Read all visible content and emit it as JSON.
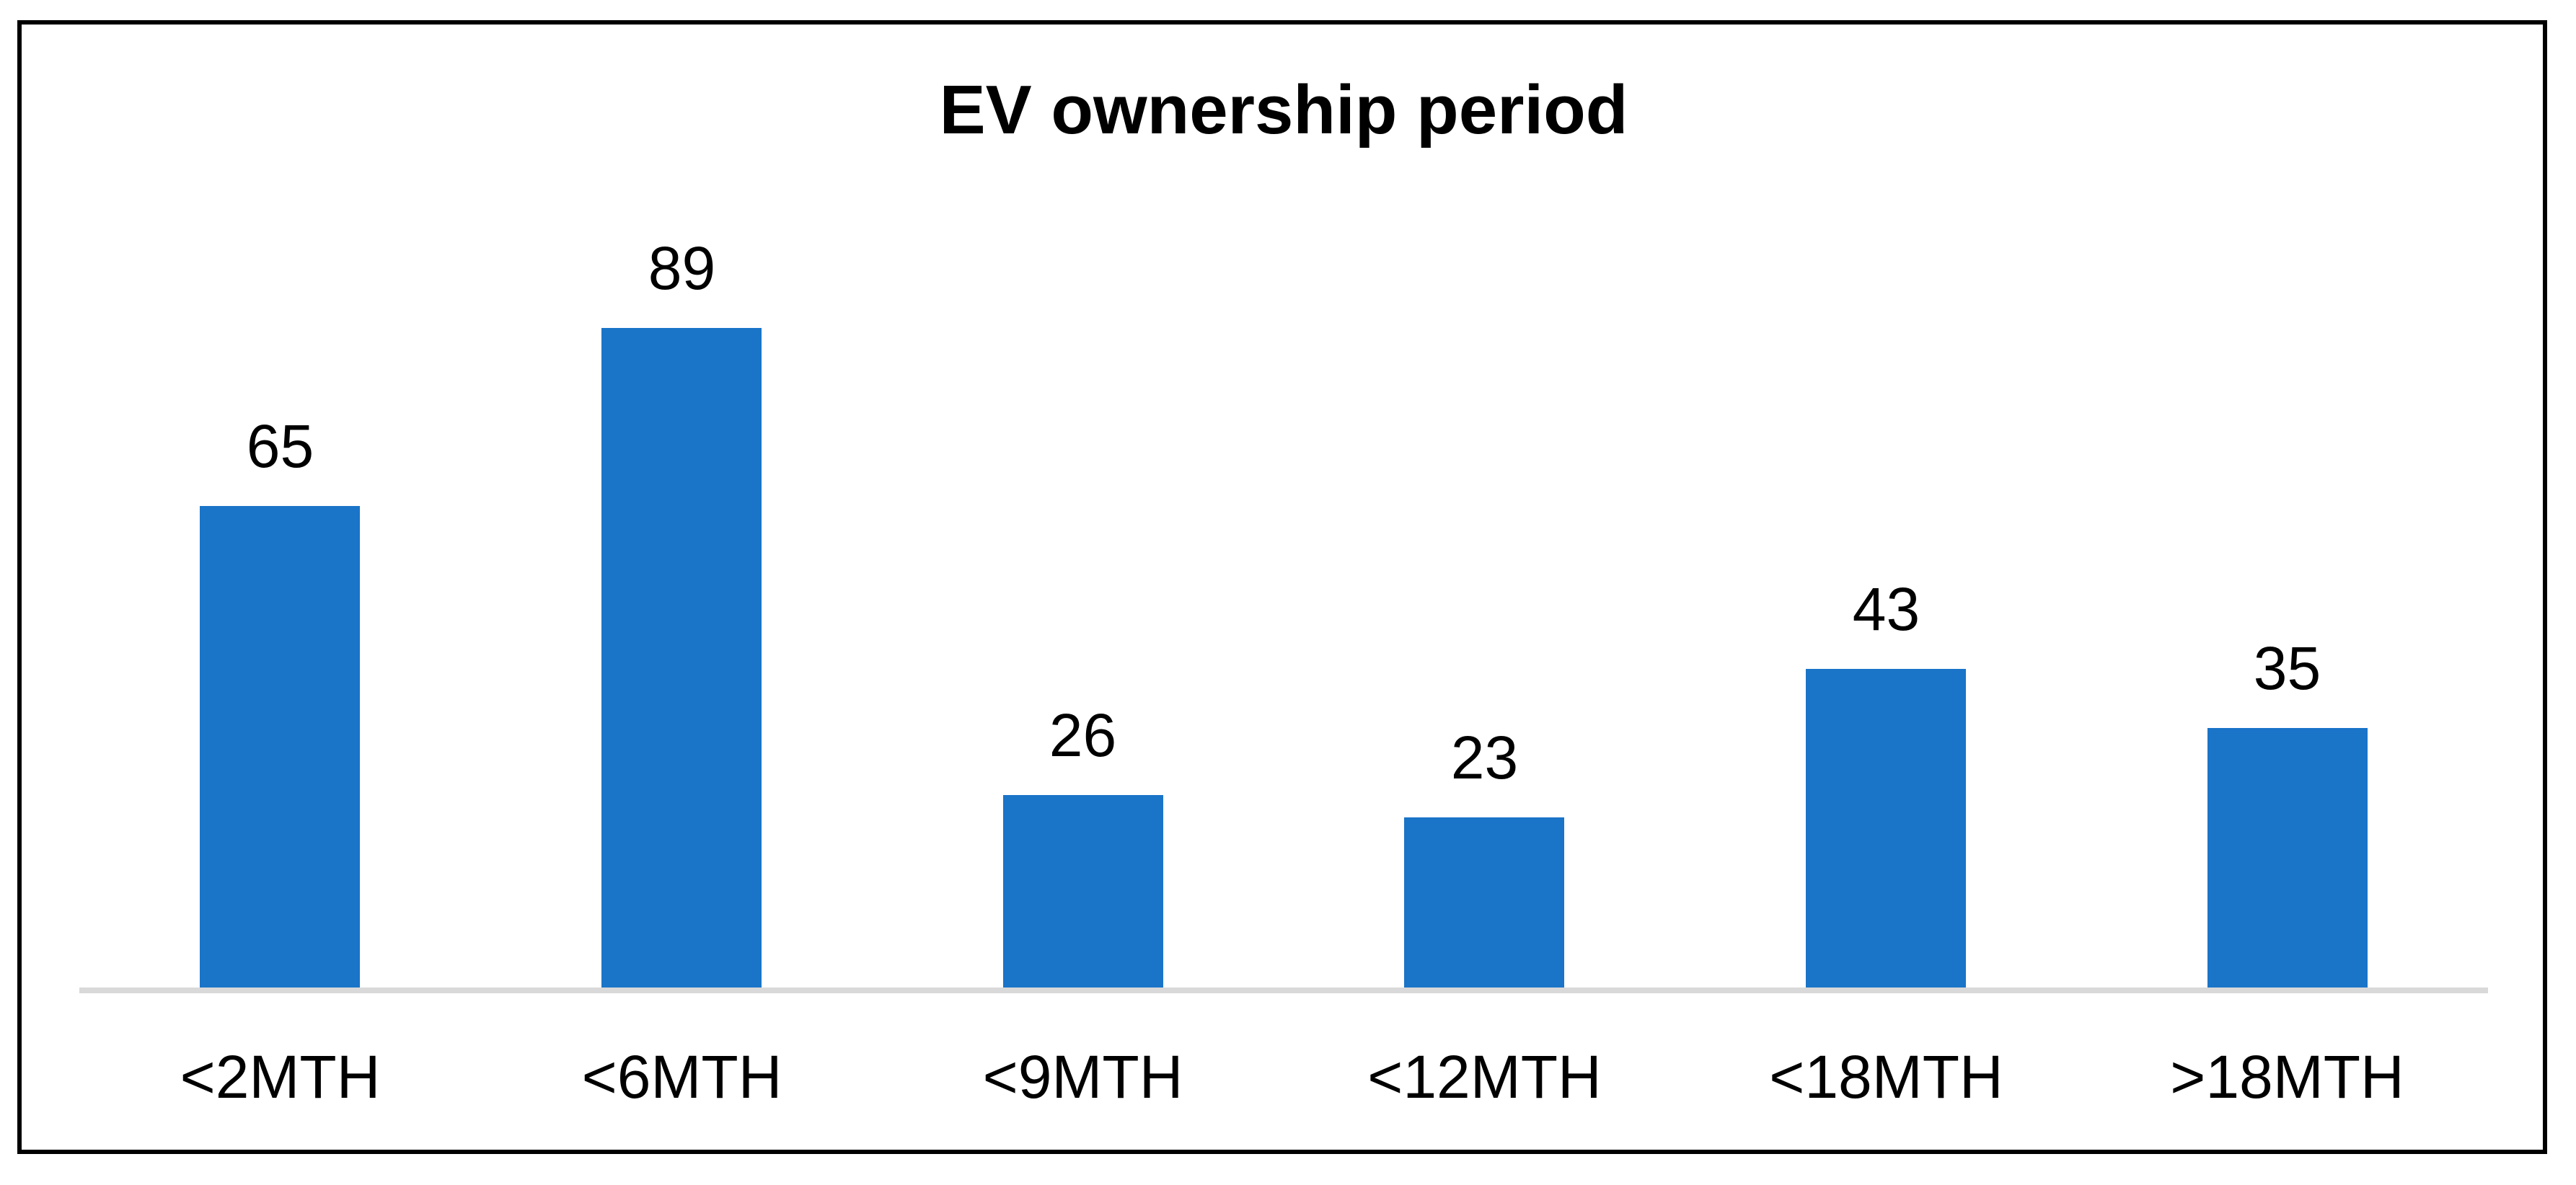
{
  "chart_data": {
    "type": "bar",
    "title": "EV ownership period",
    "categories": [
      "<2MTH",
      "<6MTH",
      "<9MTH",
      "<12MTH",
      "<18MTH",
      ">18MTH"
    ],
    "values": [
      65,
      89,
      26,
      23,
      43,
      35
    ],
    "xlabel": "",
    "ylabel": "",
    "ylim": [
      0,
      90
    ],
    "grid": false,
    "legend_position": "none",
    "data_labels_position": "above-bars",
    "colors": {
      "bar_fill": "#1A74C8",
      "axis_line": "#D9D9D9",
      "text": "#000000",
      "frame_border": "#000000",
      "background": "#FFFFFF"
    }
  }
}
